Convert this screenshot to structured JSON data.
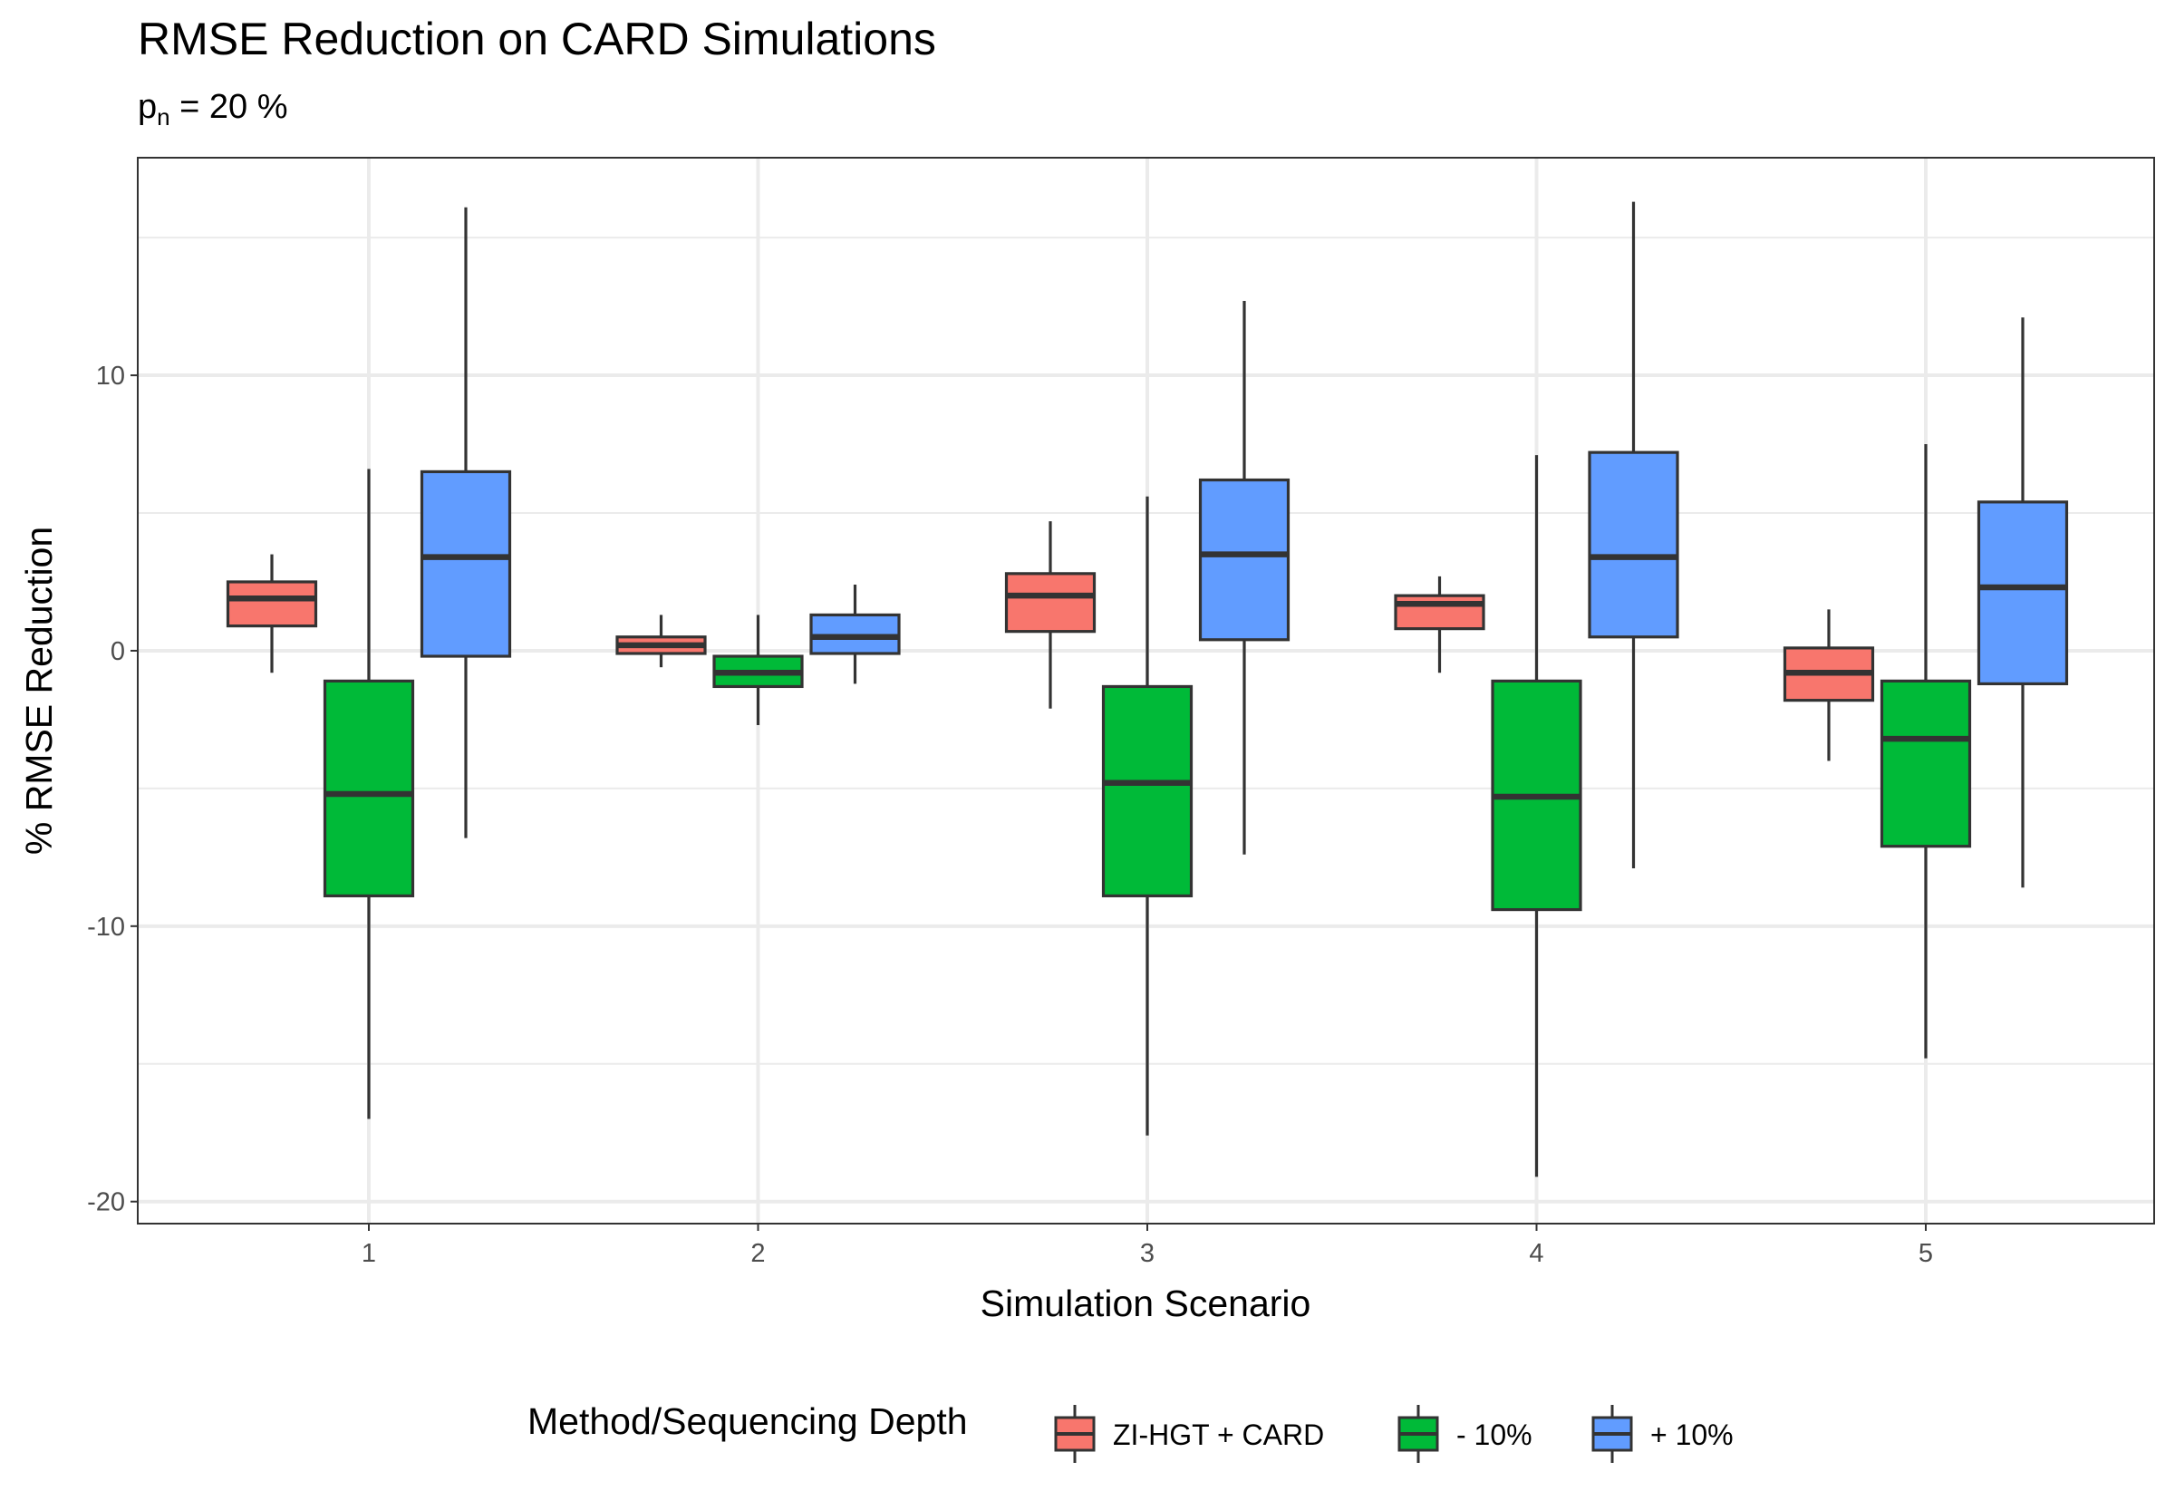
{
  "chart_data": {
    "type": "boxplot",
    "title": "RMSE Reduction on CARD Simulations",
    "subtitle": {
      "base": "p",
      "subscript": "n",
      "rest": " = 20 %"
    },
    "xlabel": "Simulation Scenario",
    "ylabel": "% RMSE Reduction",
    "categories": [
      "1",
      "2",
      "3",
      "4",
      "5"
    ],
    "yticks": [
      -20,
      -10,
      0,
      10
    ],
    "ylim": [
      -20.8,
      17.9
    ],
    "grid": true,
    "legend": {
      "title": "Method/Sequencing Depth",
      "position": "bottom"
    },
    "series": [
      {
        "name": "ZI-HGT + CARD",
        "color": "#F8766D",
        "boxes": [
          {
            "min": -0.8,
            "q1": 0.9,
            "median": 1.9,
            "q3": 2.5,
            "max": 3.5
          },
          {
            "min": -0.6,
            "q1": -0.1,
            "median": 0.2,
            "q3": 0.5,
            "max": 1.3
          },
          {
            "min": -2.1,
            "q1": 0.7,
            "median": 2.0,
            "q3": 2.8,
            "max": 4.7
          },
          {
            "min": -0.8,
            "q1": 0.8,
            "median": 1.7,
            "q3": 2.0,
            "max": 2.7
          },
          {
            "min": -4.0,
            "q1": -1.8,
            "median": -0.8,
            "q3": 0.1,
            "max": 1.5
          }
        ]
      },
      {
        "name": "- 10%",
        "color": "#00BA38",
        "boxes": [
          {
            "min": -17.0,
            "q1": -8.9,
            "median": -5.2,
            "q3": -1.1,
            "max": 6.6
          },
          {
            "min": -2.7,
            "q1": -1.3,
            "median": -0.8,
            "q3": -0.2,
            "max": 1.3
          },
          {
            "min": -17.6,
            "q1": -8.9,
            "median": -4.8,
            "q3": -1.3,
            "max": 5.6
          },
          {
            "min": -19.1,
            "q1": -9.4,
            "median": -5.3,
            "q3": -1.1,
            "max": 7.1
          },
          {
            "min": -14.8,
            "q1": -7.1,
            "median": -3.2,
            "q3": -1.1,
            "max": 7.5
          }
        ]
      },
      {
        "name": "+ 10%",
        "color": "#619CFF",
        "boxes": [
          {
            "min": -6.8,
            "q1": -0.2,
            "median": 3.4,
            "q3": 6.5,
            "max": 16.1
          },
          {
            "min": -1.2,
            "q1": -0.1,
            "median": 0.5,
            "q3": 1.3,
            "max": 2.4
          },
          {
            "min": -7.4,
            "q1": 0.4,
            "median": 3.5,
            "q3": 6.2,
            "max": 12.7
          },
          {
            "min": -7.9,
            "q1": 0.5,
            "median": 3.4,
            "q3": 7.2,
            "max": 16.3
          },
          {
            "min": -8.6,
            "q1": -1.2,
            "median": 2.3,
            "q3": 5.4,
            "max": 12.1
          }
        ]
      }
    ]
  }
}
